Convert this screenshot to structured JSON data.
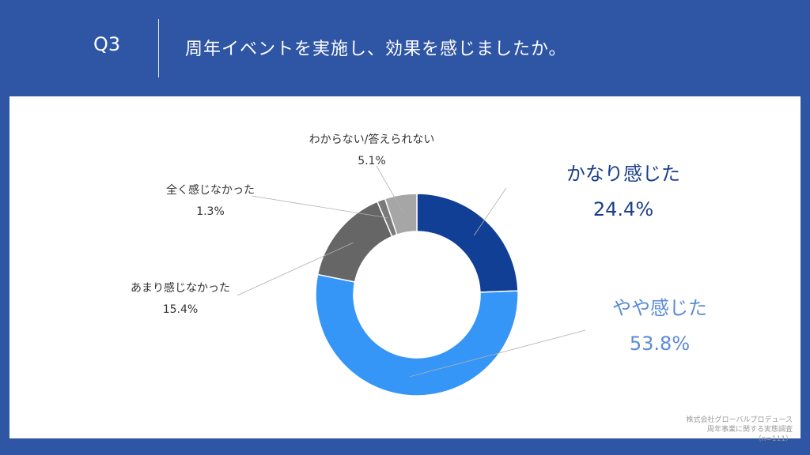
{
  "header": {
    "question_number": "Q3",
    "question_text": "周年イベントを実施し、効果を感じましたか。"
  },
  "chart_data": {
    "type": "pie",
    "donut": true,
    "categories": [
      "かなり感じた",
      "やや感じた",
      "あまり感じなかった",
      "全く感じなかった",
      "わからない/答えられない"
    ],
    "values": [
      24.4,
      53.8,
      15.4,
      1.3,
      5.1
    ],
    "value_labels": [
      "24.4%",
      "53.8%",
      "15.4%",
      "1.3%",
      "5.1%"
    ],
    "colors": [
      "#123f96",
      "#3596f7",
      "#666666",
      "#7a7a7a",
      "#a6a6a6"
    ],
    "label_colors": [
      "#1a3f8a",
      "#5b8bd6",
      "#333333",
      "#333333",
      "#333333"
    ],
    "start_angle_deg": 0,
    "direction": "clockwise"
  },
  "source_note": {
    "line1": "株式会社グローバルプロデュース",
    "line2": "周年事業に関する実態調査",
    "line3": "（n=111）"
  }
}
